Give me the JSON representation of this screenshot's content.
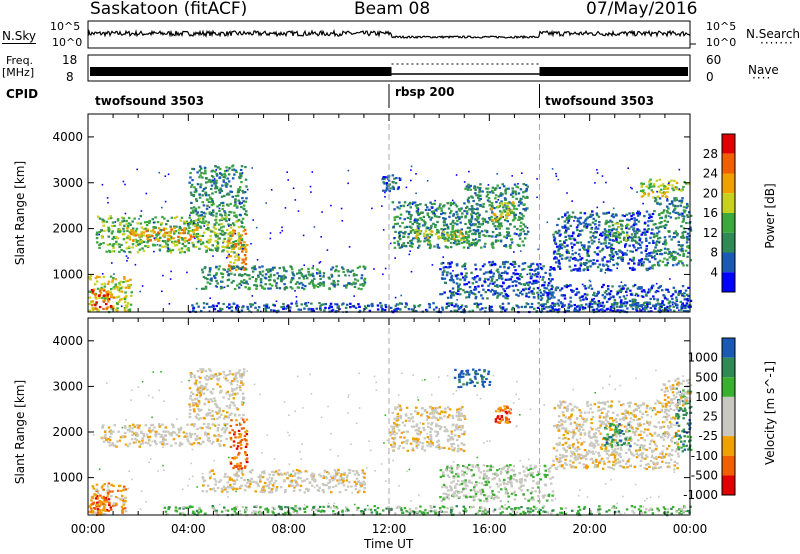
{
  "header": {
    "station": "Saskatoon (fitACF)",
    "beam": "Beam 08",
    "date": "07/May/2016"
  },
  "top_panels": {
    "nsky_label": "N.Sky",
    "nsky_ticks": [
      "10^5",
      "10^0"
    ],
    "nsearch_label": "N.Search",
    "freq_label": "Freq.",
    "freq_unit": "[MHz]",
    "freq_ticks": [
      "18",
      "8"
    ],
    "nave_label": "Nave",
    "nave_ticks": [
      "60",
      "0"
    ],
    "cpid_label": "CPID",
    "cpid_segments": [
      {
        "name": "twofsound 3503",
        "start_hour": 0
      },
      {
        "name": "rbsp 200",
        "start_hour": 12
      },
      {
        "name": "twofsound 3503",
        "start_hour": 18
      }
    ]
  },
  "colors": {
    "power": [
      "#0000ff",
      "#1a5ab4",
      "#2f8a55",
      "#3aa83a",
      "#c8d020",
      "#f0a000",
      "#f06000",
      "#e00000"
    ],
    "velocity": [
      "#e00000",
      "#f06000",
      "#f0a000",
      "#c8c8c0",
      "#c8c8c0",
      "#3ab030",
      "#2f8a55",
      "#1a5ab4"
    ]
  },
  "chart_data": [
    {
      "type": "heatmap",
      "ylabel": "Slant Range [km]",
      "ylim": [
        180,
        4500
      ],
      "yticks": [
        "1000",
        "2000",
        "3000",
        "4000"
      ],
      "xlim": [
        "00:00",
        "24:00"
      ],
      "colorbar_label": "Power [dB]",
      "colorbar_ticks": [
        "4",
        "8",
        "12",
        "16",
        "20",
        "24",
        "28"
      ],
      "colorbar_range": [
        0,
        32
      ],
      "regions": [
        {
          "t0": 0.0,
          "t1": 1.7,
          "r0": 200,
          "r1": 1000,
          "level": 4
        },
        {
          "t0": 0.1,
          "t1": 1.0,
          "r0": 250,
          "r1": 700,
          "level": 6
        },
        {
          "t0": 0.3,
          "t1": 6.2,
          "r0": 1500,
          "r1": 2300,
          "level": 3
        },
        {
          "t0": 1.5,
          "t1": 4.5,
          "r0": 1750,
          "r1": 2050,
          "level": 5
        },
        {
          "t0": 4.0,
          "t1": 6.3,
          "r0": 2300,
          "r1": 3400,
          "level": 2
        },
        {
          "t0": 5.5,
          "t1": 6.3,
          "r0": 1100,
          "r1": 2000,
          "level": 5
        },
        {
          "t0": 4.5,
          "t1": 11.0,
          "r0": 700,
          "r1": 1200,
          "level": 2
        },
        {
          "t0": 4.0,
          "t1": 24.0,
          "r0": 200,
          "r1": 400,
          "level": 1
        },
        {
          "t0": 11.7,
          "t1": 12.4,
          "r0": 2800,
          "r1": 3200,
          "level": 1
        },
        {
          "t0": 12.1,
          "t1": 15.5,
          "r0": 1600,
          "r1": 2600,
          "level": 2
        },
        {
          "t0": 13.0,
          "t1": 15.0,
          "r0": 1700,
          "r1": 2000,
          "level": 4
        },
        {
          "t0": 14.0,
          "t1": 18.5,
          "r0": 500,
          "r1": 1300,
          "level": 1
        },
        {
          "t0": 15.0,
          "t1": 17.5,
          "r0": 1600,
          "r1": 3000,
          "level": 2
        },
        {
          "t0": 16.0,
          "t1": 17.0,
          "r0": 2200,
          "r1": 2600,
          "level": 4
        },
        {
          "t0": 18.5,
          "t1": 22.5,
          "r0": 1100,
          "r1": 2400,
          "level": 1
        },
        {
          "t0": 20.5,
          "t1": 21.5,
          "r0": 1700,
          "r1": 2200,
          "level": 3
        },
        {
          "t0": 22.0,
          "t1": 23.9,
          "r0": 2700,
          "r1": 3100,
          "level": 4
        },
        {
          "t0": 22.5,
          "t1": 24.0,
          "r0": 1200,
          "r1": 2700,
          "level": 2
        },
        {
          "t0": 18.0,
          "t1": 24.0,
          "r0": 200,
          "r1": 800,
          "level": 1
        }
      ]
    },
    {
      "type": "heatmap",
      "ylabel": "Slant Range [km]",
      "ylim": [
        180,
        4500
      ],
      "yticks": [
        "1000",
        "2000",
        "3000",
        "4000"
      ],
      "xlim": [
        "00:00",
        "24:00"
      ],
      "xticks": [
        "00:00",
        "04:00",
        "08:00",
        "12:00",
        "16:00",
        "20:00",
        "00:00"
      ],
      "xlabel": "Time UT",
      "colorbar_label": "Velocity [m s^-1]",
      "colorbar_ticks": [
        "1000",
        "500",
        "100",
        "25",
        "-25",
        "-100",
        "-500",
        "-1000"
      ],
      "regions": [
        {
          "t0": 0.0,
          "t1": 1.5,
          "r0": 200,
          "r1": 900,
          "level": 2
        },
        {
          "t0": 0.1,
          "t1": 0.9,
          "r0": 250,
          "r1": 650,
          "level": 1
        },
        {
          "t0": 0.5,
          "t1": 5.5,
          "r0": 1700,
          "r1": 2200,
          "level": 3
        },
        {
          "t0": 4.0,
          "t1": 6.2,
          "r0": 2300,
          "r1": 3400,
          "level": 3
        },
        {
          "t0": 5.6,
          "t1": 6.3,
          "r0": 1200,
          "r1": 2300,
          "level": 1
        },
        {
          "t0": 4.5,
          "t1": 11.0,
          "r0": 700,
          "r1": 1200,
          "level": 3
        },
        {
          "t0": 3.0,
          "t1": 24.0,
          "r0": 200,
          "r1": 400,
          "level": 5
        },
        {
          "t0": 12.0,
          "t1": 15.0,
          "r0": 1600,
          "r1": 2600,
          "level": 3
        },
        {
          "t0": 14.5,
          "t1": 16.0,
          "r0": 3000,
          "r1": 3400,
          "level": 7
        },
        {
          "t0": 16.2,
          "t1": 16.8,
          "r0": 2200,
          "r1": 2600,
          "level": 1
        },
        {
          "t0": 14.0,
          "t1": 18.5,
          "r0": 500,
          "r1": 1300,
          "level": 4
        },
        {
          "t0": 18.5,
          "t1": 23.5,
          "r0": 1200,
          "r1": 2700,
          "level": 3
        },
        {
          "t0": 20.5,
          "t1": 21.6,
          "r0": 1700,
          "r1": 2200,
          "level": 6
        },
        {
          "t0": 23.4,
          "t1": 24.0,
          "r0": 1600,
          "r1": 3000,
          "level": 6
        },
        {
          "t0": 22.8,
          "t1": 24.0,
          "r0": 2600,
          "r1": 3200,
          "level": 3
        }
      ]
    }
  ]
}
